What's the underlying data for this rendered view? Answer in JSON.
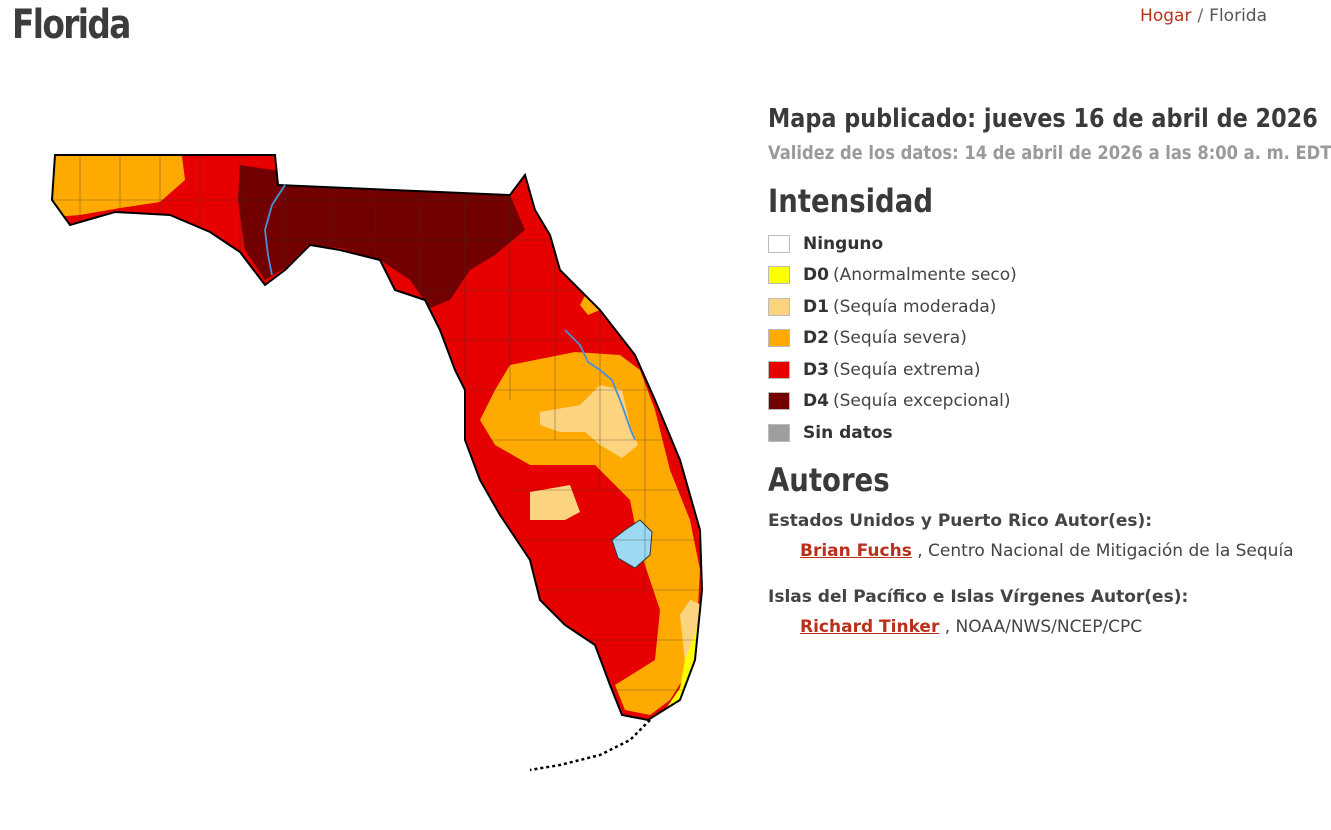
{
  "page": {
    "title": "Florida"
  },
  "breadcrumb": {
    "home": "Hogar",
    "separator": "/",
    "current": "Florida"
  },
  "map": {
    "name": "Florida",
    "colors": {
      "none": "#ffffff",
      "D0": "#ffff00",
      "D1": "#fcd37f",
      "D2": "#ffaa00",
      "D3": "#e60000",
      "D4": "#730000",
      "no_data": "#9e9e9e",
      "lake": "#9dd9f2",
      "river": "#4a90d9"
    },
    "regions": {
      "western_panhandle": "D2",
      "central_panhandle": "D3",
      "big_bend": "D4",
      "north_central": "D3",
      "northeast_coast": "D3",
      "central": "D2",
      "central_core": "D1",
      "gulf_coast": "D3",
      "southwest": "D3",
      "southeast_coast": "D2",
      "miami_coast": "D0",
      "lake_okeechobee": "lake"
    }
  },
  "sidebar": {
    "published": "Mapa publicado: jueves 16 de abril de 2026",
    "validity": "Validez de los datos: 14 de abril de 2026 a las 8:00 a. m. EDT",
    "intensity_title": "Intensidad",
    "legend": [
      {
        "code": "Ninguno",
        "desc": "",
        "color": "#ffffff"
      },
      {
        "code": "D0",
        "desc": "(Anormalmente seco)",
        "color": "#ffff00"
      },
      {
        "code": "D1",
        "desc": "(Sequía moderada)",
        "color": "#fcd37f"
      },
      {
        "code": "D2",
        "desc": "(Sequía severa)",
        "color": "#ffaa00"
      },
      {
        "code": "D3",
        "desc": "(Sequía extrema)",
        "color": "#e60000"
      },
      {
        "code": "D4",
        "desc": "(Sequía excepcional)",
        "color": "#730000"
      },
      {
        "code": "Sin datos",
        "desc": "",
        "color": "#9e9e9e"
      }
    ],
    "authors_title": "Autores",
    "group1": {
      "title": "Estados Unidos y Puerto Rico Autor(es):",
      "name": "Brian Fuchs",
      "org": ", Centro Nacional de Mitigación de la Sequía"
    },
    "group2": {
      "title": "Islas del Pacífico e Islas Vírgenes Autor(es):",
      "name": "Richard Tinker",
      "org": ", NOAA/NWS/NCEP/CPC"
    }
  }
}
